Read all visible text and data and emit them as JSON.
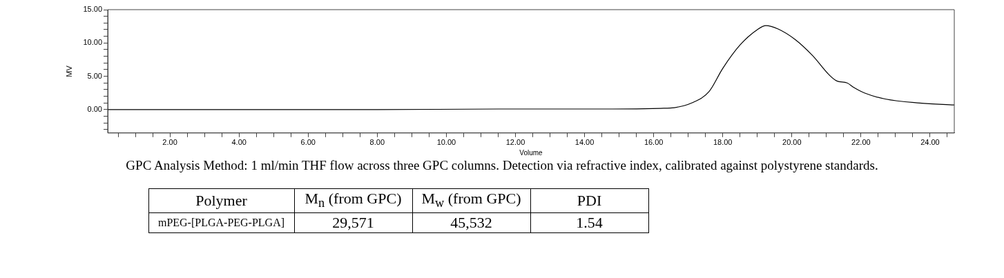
{
  "chart_data": {
    "type": "line",
    "xlabel": "Volume",
    "ylabel": "MV",
    "xlim": [
      0.2,
      24.7
    ],
    "ylim": [
      -3.5,
      15
    ],
    "xticks": [
      {
        "value": 0.5,
        "label": null
      },
      {
        "value": 1,
        "label": null
      },
      {
        "value": 1.5,
        "label": null
      },
      {
        "value": 2,
        "label": "2.00"
      },
      {
        "value": 2.5,
        "label": null
      },
      {
        "value": 3,
        "label": null
      },
      {
        "value": 3.5,
        "label": null
      },
      {
        "value": 4,
        "label": "4.00"
      },
      {
        "value": 4.5,
        "label": null
      },
      {
        "value": 5,
        "label": null
      },
      {
        "value": 5.5,
        "label": null
      },
      {
        "value": 6,
        "label": "6.00"
      },
      {
        "value": 6.5,
        "label": null
      },
      {
        "value": 7,
        "label": null
      },
      {
        "value": 7.5,
        "label": null
      },
      {
        "value": 8,
        "label": "8.00"
      },
      {
        "value": 8.5,
        "label": null
      },
      {
        "value": 9,
        "label": null
      },
      {
        "value": 9.5,
        "label": null
      },
      {
        "value": 10,
        "label": "10.00"
      },
      {
        "value": 10.5,
        "label": null
      },
      {
        "value": 11,
        "label": null
      },
      {
        "value": 11.5,
        "label": null
      },
      {
        "value": 12,
        "label": "12.00"
      },
      {
        "value": 12.5,
        "label": null
      },
      {
        "value": 13,
        "label": null
      },
      {
        "value": 13.5,
        "label": null
      },
      {
        "value": 14,
        "label": "14.00"
      },
      {
        "value": 14.5,
        "label": null
      },
      {
        "value": 15,
        "label": null
      },
      {
        "value": 15.5,
        "label": null
      },
      {
        "value": 16,
        "label": "16.00"
      },
      {
        "value": 16.5,
        "label": null
      },
      {
        "value": 17,
        "label": null
      },
      {
        "value": 17.5,
        "label": null
      },
      {
        "value": 18,
        "label": "18.00"
      },
      {
        "value": 18.5,
        "label": null
      },
      {
        "value": 19,
        "label": null
      },
      {
        "value": 19.5,
        "label": null
      },
      {
        "value": 20,
        "label": "20.00"
      },
      {
        "value": 20.5,
        "label": null
      },
      {
        "value": 21,
        "label": null
      },
      {
        "value": 21.5,
        "label": null
      },
      {
        "value": 22,
        "label": "22.00"
      },
      {
        "value": 22.5,
        "label": null
      },
      {
        "value": 23,
        "label": null
      },
      {
        "value": 23.5,
        "label": null
      },
      {
        "value": 24,
        "label": "24.00"
      },
      {
        "value": 24.5,
        "label": null
      }
    ],
    "yticks": [
      {
        "value": -3,
        "label": null
      },
      {
        "value": -2,
        "label": null
      },
      {
        "value": -1,
        "label": null
      },
      {
        "value": 0,
        "label": "0.00"
      },
      {
        "value": 1,
        "label": null
      },
      {
        "value": 2,
        "label": null
      },
      {
        "value": 3,
        "label": null
      },
      {
        "value": 4,
        "label": null
      },
      {
        "value": 5,
        "label": "5.00"
      },
      {
        "value": 6,
        "label": null
      },
      {
        "value": 7,
        "label": null
      },
      {
        "value": 8,
        "label": null
      },
      {
        "value": 9,
        "label": null
      },
      {
        "value": 10,
        "label": "10.00"
      },
      {
        "value": 11,
        "label": null
      },
      {
        "value": 12,
        "label": null
      },
      {
        "value": 13,
        "label": null
      },
      {
        "value": 14,
        "label": null
      },
      {
        "value": 15,
        "label": "15.00"
      }
    ],
    "grid": false,
    "series": [
      {
        "color": "#000000",
        "x": [
          0.2,
          4,
          8,
          11.5,
          14.8,
          16.2,
          16.6,
          17.1,
          17.6,
          18.0,
          18.5,
          19.0,
          19.25,
          19.6,
          20.1,
          20.6,
          21.1,
          21.3,
          21.6,
          21.8,
          22.1,
          22.7,
          23.7,
          24.7
        ],
        "values": [
          0.0,
          0.0,
          0.0,
          0.1,
          0.1,
          0.2,
          0.3,
          1.0,
          2.7,
          6.2,
          9.7,
          12.0,
          12.6,
          12.1,
          10.5,
          8.1,
          5.1,
          4.3,
          4.0,
          3.3,
          2.5,
          1.6,
          1.0,
          0.7
        ]
      }
    ],
    "annotations": [
      "GPC Analysis Method: 1 ml/min THF flow across three GPC columns. Detection via refractive index, calibrated against polystyrene standards.",
      "Polymer",
      "M$_{n}$ (from GPC)",
      "M$_{w}$ (from GPC)",
      "PDI",
      "mPEG-[PLGA-PEG-PLGA]",
      "29,571",
      "45,532",
      "1.54"
    ]
  }
}
